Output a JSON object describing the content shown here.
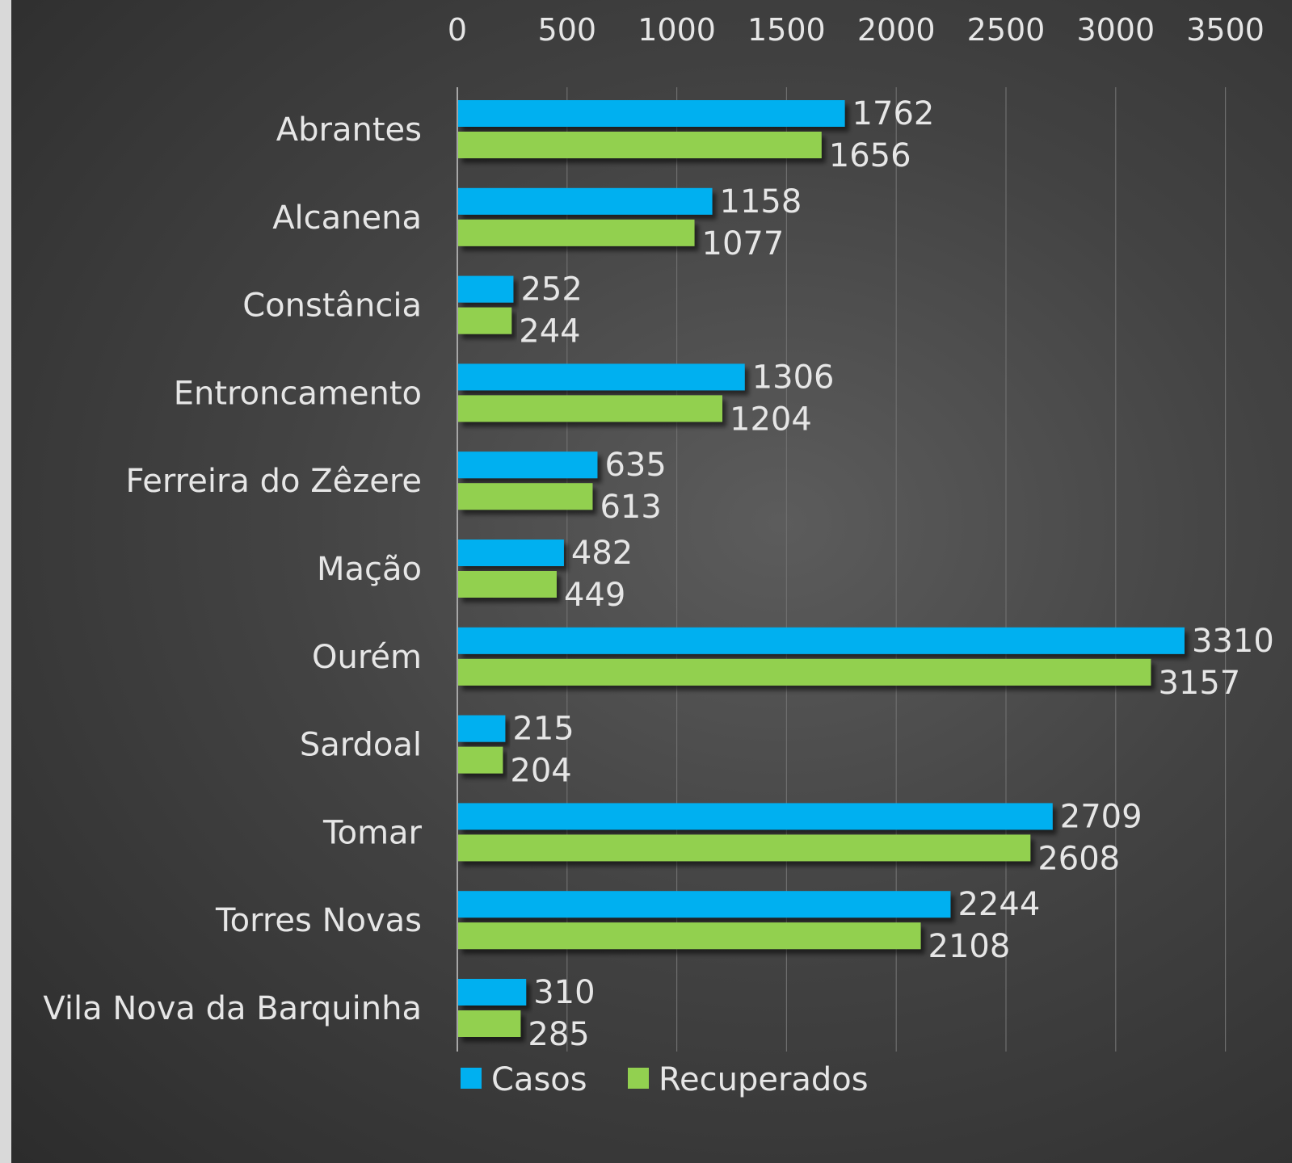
{
  "chart_data": {
    "type": "bar",
    "orientation": "horizontal",
    "categories": [
      "Abrantes",
      "Alcanena",
      "Constância",
      "Entroncamento",
      "Ferreira do Zêzere",
      "Mação",
      "Ourém",
      "Sardoal",
      "Tomar",
      "Torres Novas",
      "Vila Nova da Barquinha"
    ],
    "series": [
      {
        "name": "Casos",
        "color": "#00b0f0",
        "values": [
          1762,
          1158,
          252,
          1306,
          635,
          482,
          3310,
          215,
          2709,
          2244,
          310
        ]
      },
      {
        "name": "Recuperados",
        "color": "#92d050",
        "values": [
          1656,
          1077,
          244,
          1204,
          613,
          449,
          3157,
          204,
          2608,
          2108,
          285
        ]
      }
    ],
    "xlim": [
      0,
      3500
    ],
    "xticks": [
      "0",
      "500",
      "1000",
      "1500",
      "2000",
      "2500",
      "3000",
      "3500"
    ],
    "title": "",
    "xlabel": "",
    "ylabel": "",
    "grid": true,
    "axis_position": "top",
    "legend_position": "bottom",
    "data_labels": true
  }
}
